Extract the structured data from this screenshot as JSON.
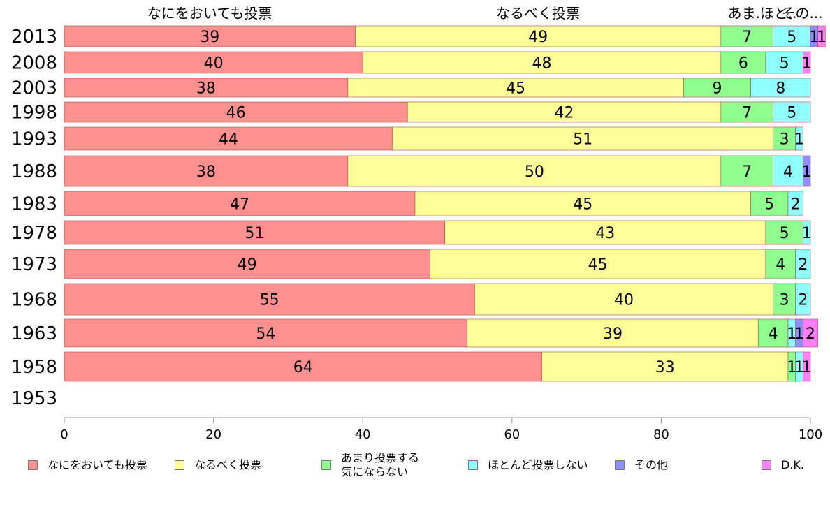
{
  "chart_data": {
    "type": "bar",
    "orientation": "horizontal",
    "stacked": true,
    "categories": [
      "2013",
      "2008",
      "2003",
      "1998",
      "1993",
      "1988",
      "1983",
      "1978",
      "1973",
      "1968",
      "1963",
      "1958",
      "1953"
    ],
    "series": [
      {
        "name": "なにをおいても投票",
        "color": "#ff9090",
        "values": [
          39,
          40,
          38,
          46,
          44,
          38,
          47,
          51,
          49,
          55,
          54,
          64,
          null
        ]
      },
      {
        "name": "なるべく投票",
        "color": "#ffff99",
        "values": [
          49,
          48,
          45,
          42,
          51,
          50,
          45,
          43,
          45,
          40,
          39,
          33,
          null
        ]
      },
      {
        "name": "あまり投票する\n気にならない",
        "color": "#90ff90",
        "values": [
          7,
          6,
          9,
          7,
          3,
          7,
          5,
          5,
          4,
          3,
          4,
          1,
          null
        ]
      },
      {
        "name": "ほとんど投票しない",
        "color": "#90ffff",
        "values": [
          5,
          5,
          8,
          5,
          1,
          4,
          2,
          1,
          2,
          2,
          1,
          1,
          null
        ]
      },
      {
        "name": "その他",
        "color": "#8f8fff",
        "values": [
          1,
          0,
          0,
          0,
          0,
          1,
          0,
          0,
          0,
          0,
          1,
          0,
          null
        ]
      },
      {
        "name": "D.K.",
        "color": "#ff80ff",
        "values": [
          1,
          1,
          0,
          0,
          0,
          0,
          0,
          0,
          0,
          0,
          2,
          1,
          null
        ]
      }
    ],
    "top_labels": [
      "なにをおいても投票",
      "なるべく投票",
      "あま..",
      "ほと..",
      "その..."
    ],
    "xlim": [
      0,
      100
    ],
    "xticks": [
      0,
      20,
      40,
      60,
      80,
      100
    ],
    "legend_position": "bottom",
    "grid": false
  }
}
